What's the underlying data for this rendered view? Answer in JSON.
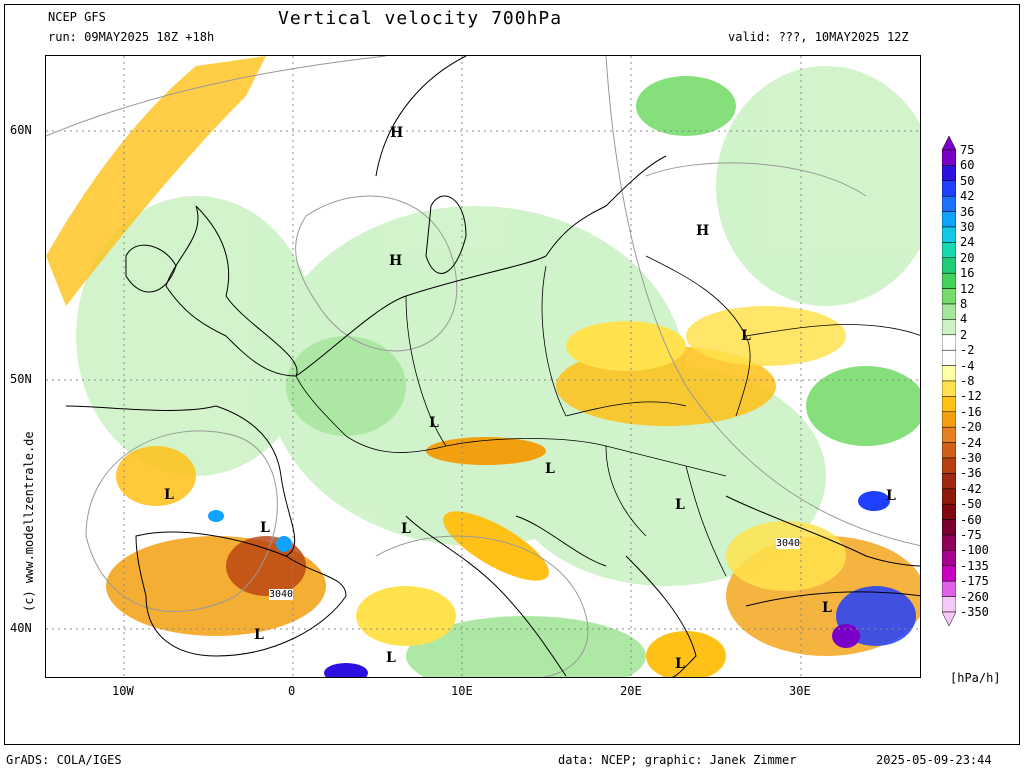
{
  "header": {
    "model": "NCEP GFS",
    "title": "Vertical velocity 700hPa",
    "run": "run: 09MAY2025 18Z +18h",
    "valid": "valid: ???, 10MAY2025 12Z"
  },
  "axes": {
    "lat_labels": [
      "60N",
      "50N",
      "40N"
    ],
    "lon_labels": [
      "10W",
      "0",
      "10E",
      "20E",
      "30E"
    ]
  },
  "map_labels": {
    "H": [
      "H",
      "H",
      "H"
    ],
    "L": [
      "L",
      "L",
      "L",
      "L",
      "L",
      "L",
      "L",
      "L",
      "L",
      "L",
      "L",
      "L"
    ],
    "contours": [
      "3040",
      "3040"
    ]
  },
  "colorbar": {
    "labels": [
      "75",
      "60",
      "50",
      "42",
      "36",
      "30",
      "24",
      "20",
      "16",
      "12",
      "8",
      "4",
      "2",
      "-2",
      "-4",
      "-8",
      "-12",
      "-16",
      "-20",
      "-24",
      "-30",
      "-36",
      "-42",
      "-50",
      "-60",
      "-75",
      "-100",
      "-135",
      "-175",
      "-260",
      "-350"
    ],
    "colors": [
      "#7a00c8",
      "#2c10e0",
      "#2040ff",
      "#1c72ff",
      "#10a2ff",
      "#12c8e6",
      "#18d8b0",
      "#20cc78",
      "#44d25a",
      "#78dc6c",
      "#a4e69a",
      "#cdf2c6",
      "#ffffff",
      "#ffffff",
      "#ffffa8",
      "#ffe24e",
      "#ffc018",
      "#f2a010",
      "#e68020",
      "#d06018",
      "#b84010",
      "#a02810",
      "#901808",
      "#820810",
      "#7a0030",
      "#90005a",
      "#a80090",
      "#c800c0",
      "#e060e8",
      "#f4c8f8"
    ],
    "unit": "[hPa/h]"
  },
  "watermark": "(c) www.modellzentrale.de",
  "footer": {
    "left": "GrADS: COLA/IGES",
    "center": "data: NCEP; graphic: Janek Zimmer",
    "right": "2025-05-09-23:44"
  }
}
